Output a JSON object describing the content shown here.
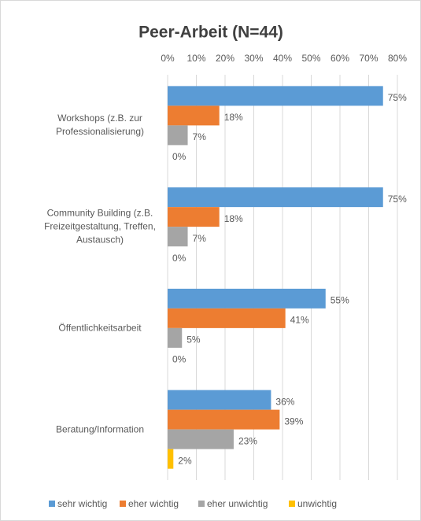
{
  "chart_data": {
    "type": "hbar",
    "title": "Peer-Arbeit (N=44)",
    "categories": [
      "Workshops (z.B. zur Professionalisierung)",
      "Community Building (z.B. Freizeitgestaltung, Treffen, Austausch)",
      "Öffentlichkeitsarbeit",
      "Beratung/Information"
    ],
    "series": [
      {
        "name": "sehr wichtig",
        "color": "#5b9bd5",
        "values": [
          75,
          75,
          55,
          36
        ],
        "value_labels": [
          "75%",
          "75%",
          "55%",
          "36%"
        ]
      },
      {
        "name": "eher wichtig",
        "color": "#ed7d31",
        "values": [
          18,
          18,
          41,
          39
        ],
        "value_labels": [
          "18%",
          "18%",
          "41%",
          "39%"
        ]
      },
      {
        "name": "eher unwichtig",
        "color": "#a5a5a5",
        "values": [
          7,
          7,
          5,
          23
        ],
        "value_labels": [
          "7%",
          "7%",
          "5%",
          "23%"
        ]
      },
      {
        "name": "unwichtig",
        "color": "#ffc000",
        "values": [
          0,
          0,
          0,
          2
        ],
        "value_labels": [
          "0%",
          "0%",
          "0%",
          "2%"
        ]
      }
    ],
    "xlim": [
      0,
      80
    ],
    "xticks": [
      {
        "value": 0,
        "label": "0%"
      },
      {
        "value": 10,
        "label": "10%"
      },
      {
        "value": 20,
        "label": "20%"
      },
      {
        "value": 30,
        "label": "30%"
      },
      {
        "value": 40,
        "label": "40%"
      },
      {
        "value": 50,
        "label": "50%"
      },
      {
        "value": 60,
        "label": "60%"
      },
      {
        "value": 70,
        "label": "70%"
      },
      {
        "value": 80,
        "label": "80%"
      }
    ],
    "grid": true,
    "legend": "bottom"
  }
}
